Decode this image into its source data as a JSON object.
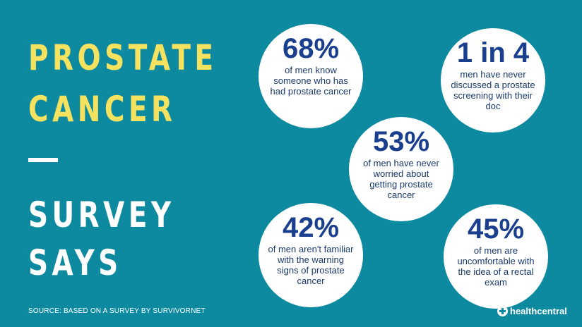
{
  "title": {
    "line1": "PROSTATE",
    "line2": "CANCER",
    "line3": "SURVEY",
    "line4": "SAYS"
  },
  "stats": [
    {
      "value": "68%",
      "desc": "of men know someone who has had prostate cancer"
    },
    {
      "value": "1 in 4",
      "desc": "men have never discussed a prostate screening with their doc"
    },
    {
      "value": "53%",
      "desc": "of men have never worried about getting prostate cancer"
    },
    {
      "value": "42%",
      "desc": "of men aren't familiar with the warning signs of prostate cancer"
    },
    {
      "value": "45%",
      "desc": "of men are uncomfortable with the idea of a rectal exam"
    }
  ],
  "footer": {
    "source": "SOURCE: BASED ON A SURVEY BY SURVIVORNET",
    "brand": "healthcentral"
  },
  "colors": {
    "background": "#0e8aa0",
    "title_accent": "#f5e35f",
    "stat_text": "#1b3f8f"
  }
}
